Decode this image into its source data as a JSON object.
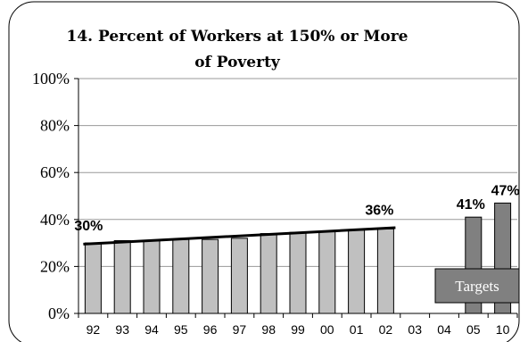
{
  "chart_data": {
    "type": "bar",
    "title_line1": "14. Percent of Workers at 150% or More",
    "title_line2": "of Poverty",
    "categories": [
      "92",
      "93",
      "94",
      "95",
      "96",
      "97",
      "98",
      "99",
      "00",
      "01",
      "02",
      "03",
      "04",
      "05",
      "10"
    ],
    "y_tick_labels": [
      "0%",
      "20%",
      "40%",
      "60%",
      "80%",
      "100%"
    ],
    "ylim": [
      0,
      100
    ],
    "grid": true,
    "series": [
      {
        "values": [
          30,
          31,
          31,
          31.5,
          31.5,
          32,
          34,
          34.5,
          35,
          35.5,
          36,
          null,
          null,
          null,
          null
        ],
        "color": "#c0c0c0"
      },
      {
        "name": "Targets",
        "values": [
          null,
          null,
          null,
          null,
          null,
          null,
          null,
          null,
          null,
          null,
          null,
          null,
          null,
          41,
          47
        ],
        "color": "#808080"
      }
    ],
    "trend_line": {
      "from": [
        "92",
        29.5
      ],
      "to": [
        "02",
        36.5
      ]
    },
    "data_labels": [
      {
        "category": "92",
        "value": 30,
        "text": "30%"
      },
      {
        "category": "02",
        "value": 36,
        "text": "36%"
      },
      {
        "category": "05",
        "value": 41,
        "text": "41%"
      },
      {
        "category": "10",
        "value": 47,
        "text": "47%"
      }
    ],
    "legend": {
      "text": "Targets",
      "placement": "bottom-right"
    }
  }
}
